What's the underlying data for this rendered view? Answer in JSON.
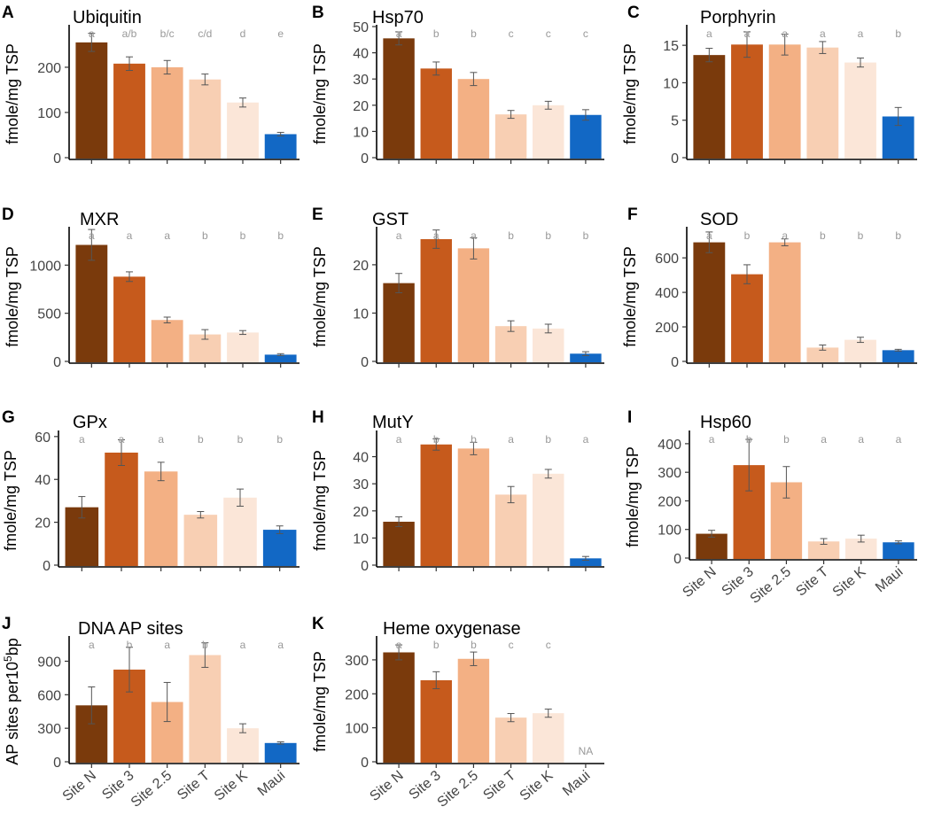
{
  "colors": [
    "#7a3a0c",
    "#c65a1c",
    "#f3b084",
    "#f8cfb3",
    "#fbe6d8",
    "#1268c5"
  ],
  "categories": [
    "Site N",
    "Site 3",
    "Site 2.5",
    "Site T",
    "Site K",
    "Maui"
  ],
  "chart_data": [
    {
      "letter": "A",
      "type": "bar",
      "title": "Ubiquitin",
      "ylabel": "fmole/mg TSP",
      "ylim": [
        0,
        290
      ],
      "yticks": [
        0,
        100,
        200
      ],
      "show_xticklabels": false,
      "values": [
        255,
        208,
        200,
        173,
        122,
        52
      ],
      "errors": [
        20,
        15,
        15,
        12,
        10,
        4
      ],
      "letters": [
        "a",
        "a/b",
        "b/c",
        "c/d",
        "d",
        "e"
      ]
    },
    {
      "letter": "B",
      "type": "bar",
      "title": "Hsp70",
      "ylabel": "fmole/mg TSP",
      "ylim": [
        0,
        50
      ],
      "yticks": [
        0,
        10,
        20,
        30,
        40,
        50
      ],
      "show_xticklabels": false,
      "values": [
        45.5,
        34,
        30,
        16.5,
        20,
        16.3
      ],
      "errors": [
        2.5,
        2.5,
        2.5,
        1.5,
        1.5,
        2
      ],
      "letters": [
        "a",
        "b",
        "b",
        "c",
        "c",
        "c"
      ]
    },
    {
      "letter": "C",
      "type": "bar",
      "title": "Porphyrin",
      "ylabel": "fmole/mg TSP",
      "ylim": [
        0,
        17.5
      ],
      "yticks": [
        0,
        5,
        10,
        15
      ],
      "show_xticklabels": false,
      "values": [
        13.7,
        15.1,
        15.1,
        14.7,
        12.7,
        5.5
      ],
      "errors": [
        0.9,
        1.7,
        1.4,
        0.8,
        0.6,
        1.2
      ],
      "letters": [
        "a",
        "a",
        "a",
        "a",
        "a",
        "b"
      ]
    },
    {
      "letter": "D",
      "type": "bar",
      "title": "MXR",
      "ylabel": "fmole/mg TSP",
      "ylim": [
        0,
        1380
      ],
      "yticks": [
        0,
        500,
        1000
      ],
      "show_xticklabels": false,
      "values": [
        1210,
        880,
        430,
        280,
        300,
        70
      ],
      "errors": [
        160,
        50,
        30,
        50,
        20,
        10
      ],
      "letters": [
        "a",
        "a",
        "a",
        "b",
        "b",
        "b"
      ]
    },
    {
      "letter": "E",
      "type": "bar",
      "title": "GST",
      "ylabel": "fmole/mg TSP",
      "ylim": [
        0,
        27.5
      ],
      "yticks": [
        0,
        10,
        20
      ],
      "show_xticklabels": false,
      "values": [
        16.2,
        25.3,
        23.4,
        7.3,
        6.8,
        1.6
      ],
      "errors": [
        2,
        1.9,
        2.2,
        1.1,
        0.9,
        0.4
      ],
      "letters": [
        "a",
        "a",
        "a",
        "b",
        "b",
        "b"
      ]
    },
    {
      "letter": "F",
      "type": "bar",
      "title": "SOD",
      "ylabel": "fmole/mg TSP",
      "ylim": [
        0,
        770
      ],
      "yticks": [
        0,
        200,
        400,
        600
      ],
      "show_xticklabels": false,
      "values": [
        690,
        505,
        690,
        80,
        125,
        65
      ],
      "errors": [
        60,
        55,
        20,
        15,
        15,
        5
      ],
      "letters": [
        "a",
        "b",
        "a",
        "b",
        "b",
        "b"
      ]
    },
    {
      "letter": "G",
      "type": "bar",
      "title": "GPx",
      "ylabel": "fmole/mg TSP",
      "ylim": [
        0,
        62
      ],
      "yticks": [
        0,
        20,
        40,
        60
      ],
      "show_xticklabels": false,
      "values": [
        27,
        52.5,
        43.7,
        23.5,
        31.5,
        16.5
      ],
      "errors": [
        5,
        6,
        4.3,
        1.5,
        4,
        1.8
      ],
      "letters": [
        "a",
        "a",
        "a",
        "b",
        "b",
        "b"
      ]
    },
    {
      "letter": "H",
      "type": "bar",
      "title": "MutY",
      "ylabel": "fmole/mg TSP",
      "ylim": [
        0,
        49
      ],
      "yticks": [
        0,
        10,
        20,
        30,
        40
      ],
      "show_xticklabels": false,
      "values": [
        16,
        44.5,
        43,
        26,
        33.7,
        2.5
      ],
      "errors": [
        1.8,
        2.1,
        2.3,
        3,
        1.6,
        0.7
      ],
      "letters": [
        "a",
        "b",
        "b",
        "a",
        "b",
        "a"
      ]
    },
    {
      "letter": "I",
      "type": "bar",
      "title": "Hsp60",
      "ylabel": "fmole/mg TSP",
      "ylim": [
        0,
        440
      ],
      "yticks": [
        0,
        100,
        200,
        300,
        400
      ],
      "show_xticklabels": true,
      "values": [
        85,
        325,
        265,
        58,
        68,
        55
      ],
      "errors": [
        12,
        90,
        55,
        10,
        12,
        5
      ],
      "letters": [
        "a",
        "b",
        "b",
        "a",
        "a",
        "a"
      ]
    },
    {
      "letter": "J",
      "type": "bar",
      "title": "DNA AP sites",
      "ylabel": "AP sites per10",
      "ylabel_sup": "5",
      "ylabel_suffix": "bp",
      "ylim": [
        0,
        1110
      ],
      "yticks": [
        0,
        300,
        600,
        900
      ],
      "show_xticklabels": true,
      "values": [
        505,
        825,
        535,
        955,
        300,
        168
      ],
      "errors": [
        165,
        200,
        175,
        110,
        40,
        10
      ],
      "letters": [
        "a",
        "b",
        "a",
        "b",
        "a",
        "a"
      ]
    },
    {
      "letter": "K",
      "type": "bar",
      "title": "Heme oxygenase",
      "ylabel": "fmole/mg TSP",
      "ylim": [
        0,
        365
      ],
      "yticks": [
        0,
        100,
        200,
        300
      ],
      "show_xticklabels": true,
      "values": [
        322,
        240,
        303,
        130,
        143,
        null
      ],
      "errors": [
        22,
        25,
        20,
        12,
        12,
        null
      ],
      "letters": [
        "a",
        "b",
        "b",
        "c",
        "c",
        ""
      ],
      "na_label": "NA"
    }
  ]
}
